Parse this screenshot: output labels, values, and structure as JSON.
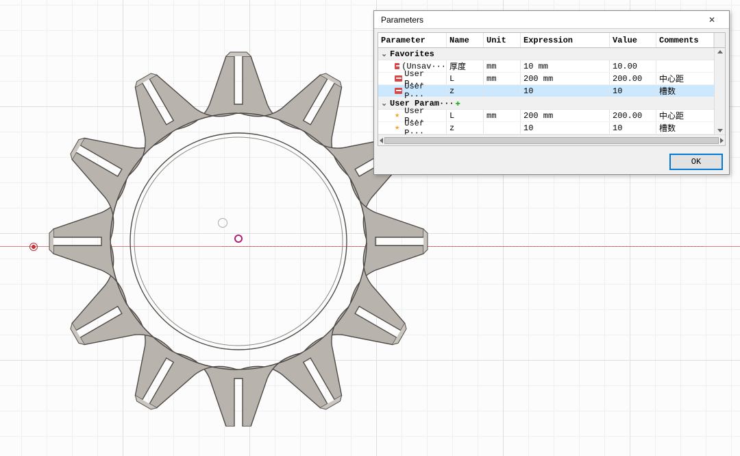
{
  "viewport": {
    "grid_major_color": "#dedede",
    "grid_minor_color": "#efefef",
    "background_color": "#fcfcfc",
    "axis_x_color": "#c84040",
    "gear": {
      "type": "gear-wheel-3d",
      "teeth": 12,
      "outer_radius": 270,
      "root_radius": 190,
      "bore_radius": 155,
      "thickness": 10,
      "fill": "#b8b3ad",
      "stroke": "#4e4a46"
    }
  },
  "dialog": {
    "title": "Parameters",
    "close_glyph": "✕",
    "columns": {
      "parameter": "Parameter",
      "name": "Name",
      "unit": "Unit",
      "expression": "Expression",
      "value": "Value",
      "comments": "Comments"
    },
    "sections": [
      {
        "label": "Favorites",
        "expanded": true,
        "rows": [
          {
            "icon": "fx",
            "src": "(Unsav···",
            "name": "厚度",
            "unit": "mm",
            "expr": "10 mm",
            "value": "10.00",
            "comments": "",
            "selected": false
          },
          {
            "icon": "fx",
            "src": "User P···",
            "name": "L",
            "unit": "mm",
            "expr": "200 mm",
            "value": "200.00",
            "comments": "中心距",
            "selected": false
          },
          {
            "icon": "fx",
            "src": "User P···",
            "name": "z",
            "unit": "",
            "expr": "10",
            "value": "10",
            "comments": "槽数",
            "selected": true
          }
        ]
      },
      {
        "label": "User Param···",
        "add_button": true,
        "expanded": true,
        "rows": [
          {
            "icon": "star",
            "src": "User P···",
            "name": "L",
            "unit": "mm",
            "expr": "200 mm",
            "value": "200.00",
            "comments": "中心距",
            "selected": false
          },
          {
            "icon": "star",
            "src": "User P···",
            "name": "z",
            "unit": "",
            "expr": "10",
            "value": "10",
            "comments": "槽数",
            "selected": false
          }
        ]
      }
    ],
    "ok_label": "OK"
  }
}
